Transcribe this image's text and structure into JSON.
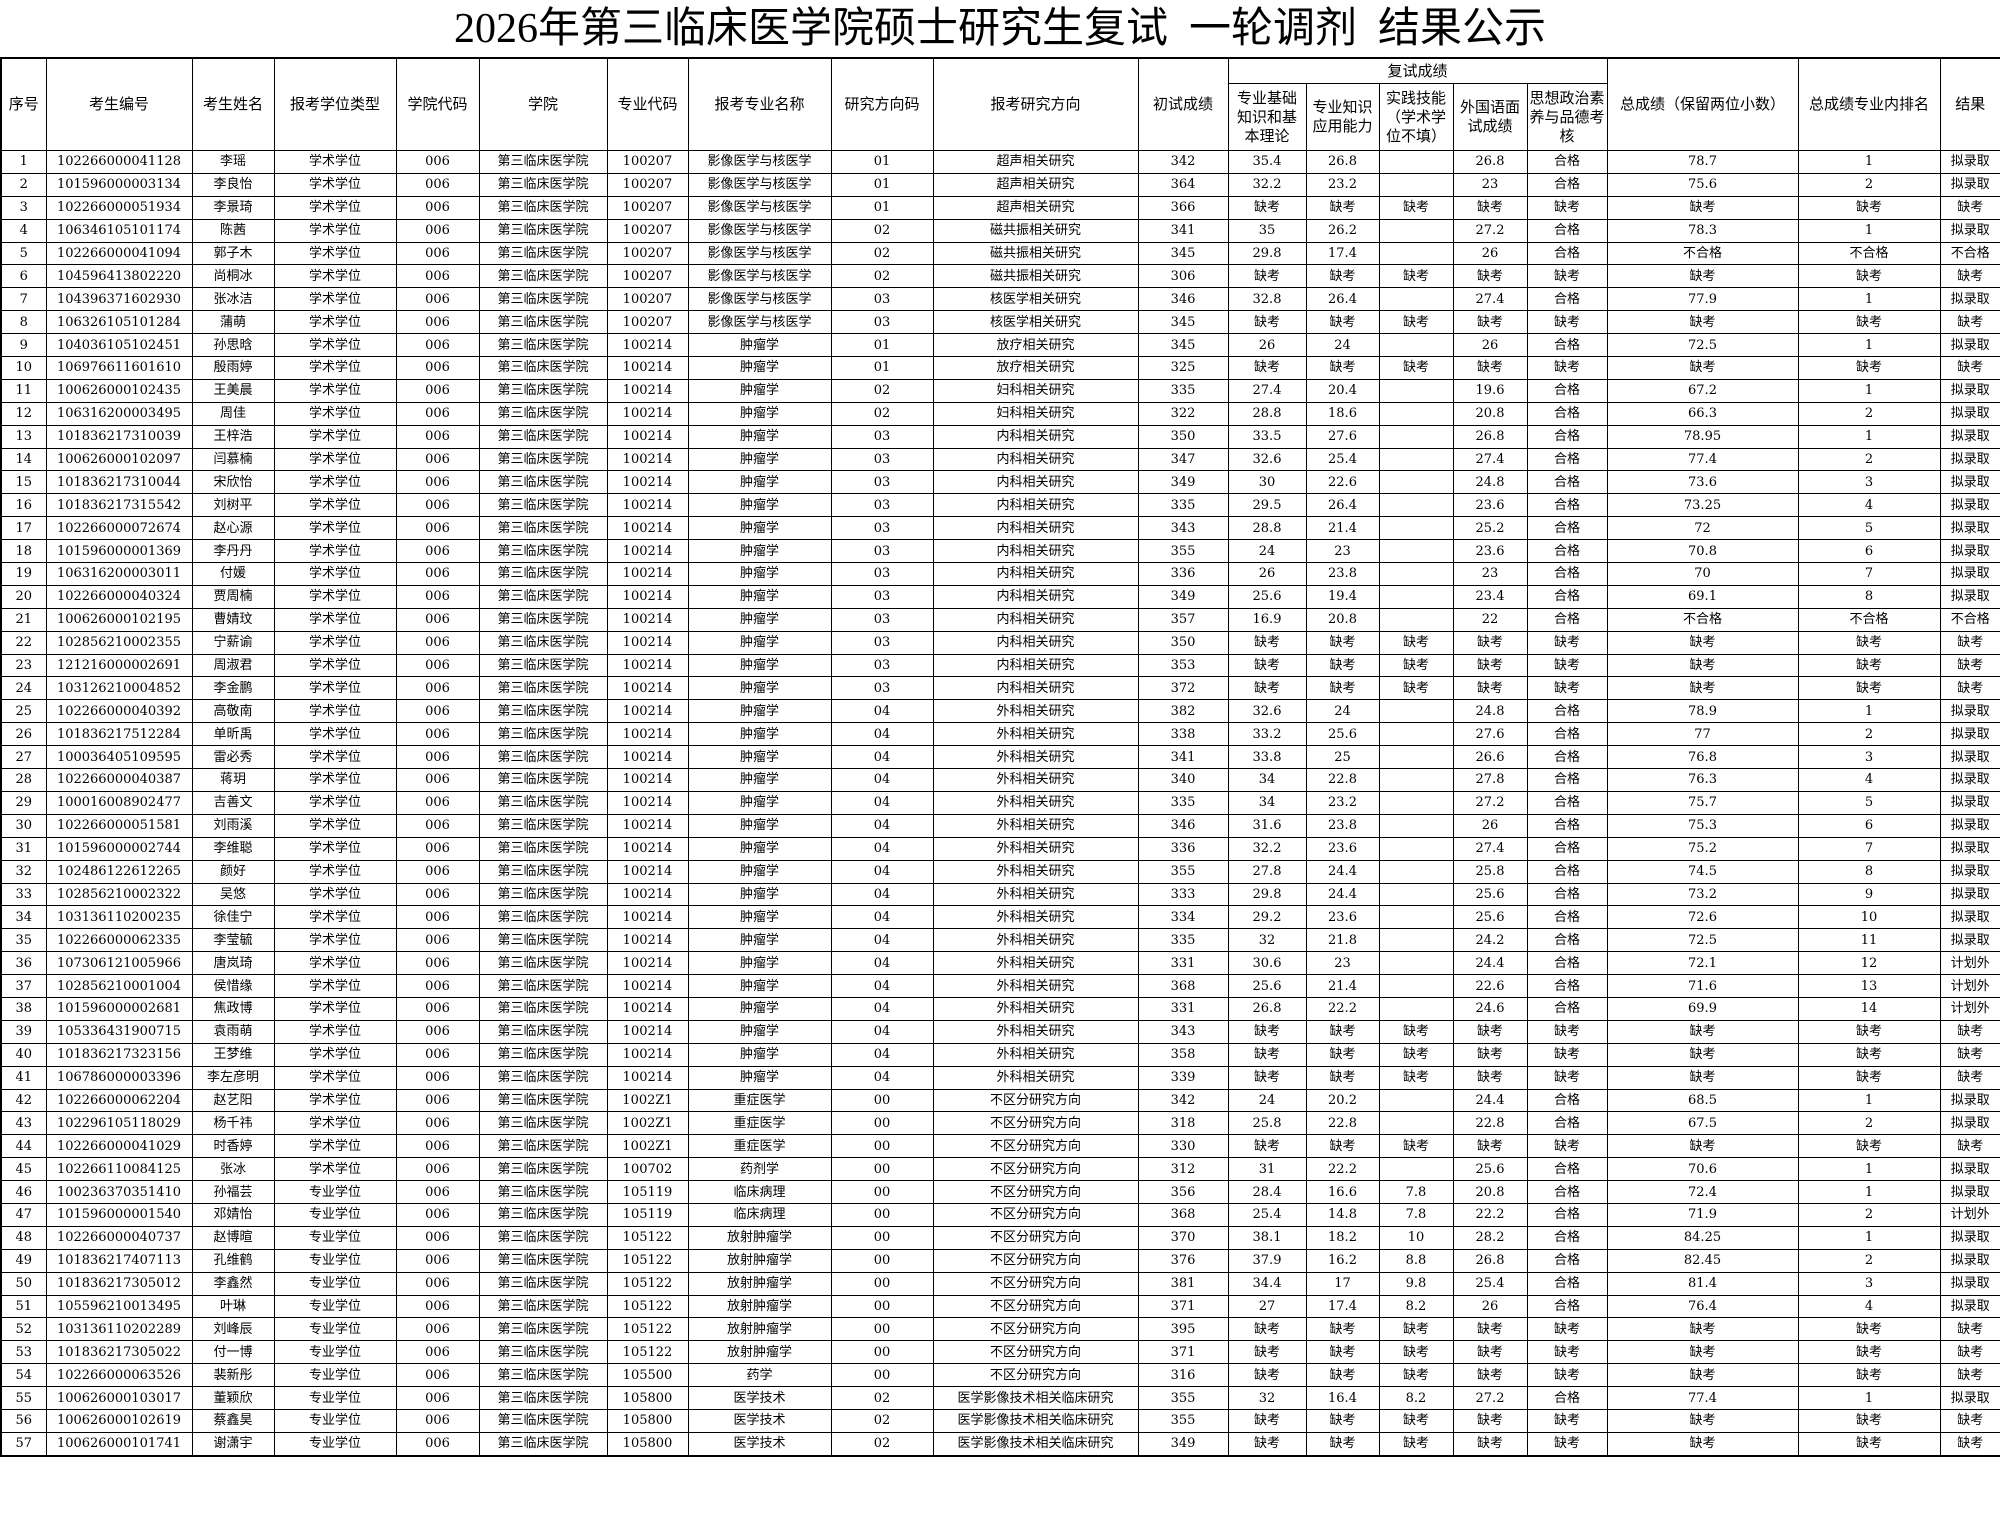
{
  "title": "2026年第三临床医学院硕士研究生复试  一轮调剂  结果公示",
  "table": {
    "headers": {
      "seq": "序号",
      "exam_id": "考生编号",
      "name": "考生姓名",
      "degree_type": "报考学位类型",
      "college_code": "学院代码",
      "college": "学院",
      "major_code": "专业代码",
      "major": "报考专业名称",
      "direction_code": "研究方向码",
      "direction": "报考研究方向",
      "prelim": "初试成绩",
      "retest_group": "复试成绩",
      "s1": "专业基础知识和基本理论",
      "s2": "专业知识应用能力",
      "s3": "实践技能（学术学位不填）",
      "s4": "外国语面试成绩",
      "s5": "思想政治素养与品德考核",
      "total": "总成绩（保留两位小数）",
      "rank": "总成绩专业内排名",
      "result": "结果"
    },
    "rows": [
      [
        "1",
        "102266000041128",
        "李瑶",
        "学术学位",
        "006",
        "第三临床医学院",
        "100207",
        "影像医学与核医学",
        "01",
        "超声相关研究",
        "342",
        "35.4",
        "26.8",
        "",
        "26.8",
        "合格",
        "78.7",
        "1",
        "拟录取"
      ],
      [
        "2",
        "101596000003134",
        "李良怡",
        "学术学位",
        "006",
        "第三临床医学院",
        "100207",
        "影像医学与核医学",
        "01",
        "超声相关研究",
        "364",
        "32.2",
        "23.2",
        "",
        "23",
        "合格",
        "75.6",
        "2",
        "拟录取"
      ],
      [
        "3",
        "102266000051934",
        "李景琦",
        "学术学位",
        "006",
        "第三临床医学院",
        "100207",
        "影像医学与核医学",
        "01",
        "超声相关研究",
        "366",
        "缺考",
        "缺考",
        "缺考",
        "缺考",
        "缺考",
        "缺考",
        "缺考",
        "缺考"
      ],
      [
        "4",
        "106346105101174",
        "陈茜",
        "学术学位",
        "006",
        "第三临床医学院",
        "100207",
        "影像医学与核医学",
        "02",
        "磁共振相关研究",
        "341",
        "35",
        "26.2",
        "",
        "27.2",
        "合格",
        "78.3",
        "1",
        "拟录取"
      ],
      [
        "5",
        "102266000041094",
        "郭子木",
        "学术学位",
        "006",
        "第三临床医学院",
        "100207",
        "影像医学与核医学",
        "02",
        "磁共振相关研究",
        "345",
        "29.8",
        "17.4",
        "",
        "26",
        "合格",
        "不合格",
        "不合格",
        "不合格"
      ],
      [
        "6",
        "104596413802220",
        "尚桐冰",
        "学术学位",
        "006",
        "第三临床医学院",
        "100207",
        "影像医学与核医学",
        "02",
        "磁共振相关研究",
        "306",
        "缺考",
        "缺考",
        "缺考",
        "缺考",
        "缺考",
        "缺考",
        "缺考",
        "缺考"
      ],
      [
        "7",
        "104396371602930",
        "张冰洁",
        "学术学位",
        "006",
        "第三临床医学院",
        "100207",
        "影像医学与核医学",
        "03",
        "核医学相关研究",
        "346",
        "32.8",
        "26.4",
        "",
        "27.4",
        "合格",
        "77.9",
        "1",
        "拟录取"
      ],
      [
        "8",
        "106326105101284",
        "蒲萌",
        "学术学位",
        "006",
        "第三临床医学院",
        "100207",
        "影像医学与核医学",
        "03",
        "核医学相关研究",
        "345",
        "缺考",
        "缺考",
        "缺考",
        "缺考",
        "缺考",
        "缺考",
        "缺考",
        "缺考"
      ],
      [
        "9",
        "104036105102451",
        "孙思晗",
        "学术学位",
        "006",
        "第三临床医学院",
        "100214",
        "肿瘤学",
        "01",
        "放疗相关研究",
        "345",
        "26",
        "24",
        "",
        "26",
        "合格",
        "72.5",
        "1",
        "拟录取"
      ],
      [
        "10",
        "106976611601610",
        "殷雨婷",
        "学术学位",
        "006",
        "第三临床医学院",
        "100214",
        "肿瘤学",
        "01",
        "放疗相关研究",
        "325",
        "缺考",
        "缺考",
        "缺考",
        "缺考",
        "缺考",
        "缺考",
        "缺考",
        "缺考"
      ],
      [
        "11",
        "100626000102435",
        "王美晨",
        "学术学位",
        "006",
        "第三临床医学院",
        "100214",
        "肿瘤学",
        "02",
        "妇科相关研究",
        "335",
        "27.4",
        "20.4",
        "",
        "19.6",
        "合格",
        "67.2",
        "1",
        "拟录取"
      ],
      [
        "12",
        "106316200003495",
        "周佳",
        "学术学位",
        "006",
        "第三临床医学院",
        "100214",
        "肿瘤学",
        "02",
        "妇科相关研究",
        "322",
        "28.8",
        "18.6",
        "",
        "20.8",
        "合格",
        "66.3",
        "2",
        "拟录取"
      ],
      [
        "13",
        "101836217310039",
        "王梓浩",
        "学术学位",
        "006",
        "第三临床医学院",
        "100214",
        "肿瘤学",
        "03",
        "内科相关研究",
        "350",
        "33.5",
        "27.6",
        "",
        "26.8",
        "合格",
        "78.95",
        "1",
        "拟录取"
      ],
      [
        "14",
        "100626000102097",
        "闫慕楠",
        "学术学位",
        "006",
        "第三临床医学院",
        "100214",
        "肿瘤学",
        "03",
        "内科相关研究",
        "347",
        "32.6",
        "25.4",
        "",
        "27.4",
        "合格",
        "77.4",
        "2",
        "拟录取"
      ],
      [
        "15",
        "101836217310044",
        "宋欣怡",
        "学术学位",
        "006",
        "第三临床医学院",
        "100214",
        "肿瘤学",
        "03",
        "内科相关研究",
        "349",
        "30",
        "22.6",
        "",
        "24.8",
        "合格",
        "73.6",
        "3",
        "拟录取"
      ],
      [
        "16",
        "101836217315542",
        "刘树平",
        "学术学位",
        "006",
        "第三临床医学院",
        "100214",
        "肿瘤学",
        "03",
        "内科相关研究",
        "335",
        "29.5",
        "26.4",
        "",
        "23.6",
        "合格",
        "73.25",
        "4",
        "拟录取"
      ],
      [
        "17",
        "102266000072674",
        "赵心源",
        "学术学位",
        "006",
        "第三临床医学院",
        "100214",
        "肿瘤学",
        "03",
        "内科相关研究",
        "343",
        "28.8",
        "21.4",
        "",
        "25.2",
        "合格",
        "72",
        "5",
        "拟录取"
      ],
      [
        "18",
        "101596000001369",
        "李丹丹",
        "学术学位",
        "006",
        "第三临床医学院",
        "100214",
        "肿瘤学",
        "03",
        "内科相关研究",
        "355",
        "24",
        "23",
        "",
        "23.6",
        "合格",
        "70.8",
        "6",
        "拟录取"
      ],
      [
        "19",
        "106316200003011",
        "付媛",
        "学术学位",
        "006",
        "第三临床医学院",
        "100214",
        "肿瘤学",
        "03",
        "内科相关研究",
        "336",
        "26",
        "23.8",
        "",
        "23",
        "合格",
        "70",
        "7",
        "拟录取"
      ],
      [
        "20",
        "102266000040324",
        "贾周楠",
        "学术学位",
        "006",
        "第三临床医学院",
        "100214",
        "肿瘤学",
        "03",
        "内科相关研究",
        "349",
        "25.6",
        "19.4",
        "",
        "23.4",
        "合格",
        "69.1",
        "8",
        "拟录取"
      ],
      [
        "21",
        "100626000102195",
        "曹婧玟",
        "学术学位",
        "006",
        "第三临床医学院",
        "100214",
        "肿瘤学",
        "03",
        "内科相关研究",
        "357",
        "16.9",
        "20.8",
        "",
        "22",
        "合格",
        "不合格",
        "不合格",
        "不合格"
      ],
      [
        "22",
        "102856210002355",
        "宁薪谕",
        "学术学位",
        "006",
        "第三临床医学院",
        "100214",
        "肿瘤学",
        "03",
        "内科相关研究",
        "350",
        "缺考",
        "缺考",
        "缺考",
        "缺考",
        "缺考",
        "缺考",
        "缺考",
        "缺考"
      ],
      [
        "23",
        "121216000002691",
        "周淑君",
        "学术学位",
        "006",
        "第三临床医学院",
        "100214",
        "肿瘤学",
        "03",
        "内科相关研究",
        "353",
        "缺考",
        "缺考",
        "缺考",
        "缺考",
        "缺考",
        "缺考",
        "缺考",
        "缺考"
      ],
      [
        "24",
        "103126210004852",
        "李金鹏",
        "学术学位",
        "006",
        "第三临床医学院",
        "100214",
        "肿瘤学",
        "03",
        "内科相关研究",
        "372",
        "缺考",
        "缺考",
        "缺考",
        "缺考",
        "缺考",
        "缺考",
        "缺考",
        "缺考"
      ],
      [
        "25",
        "102266000040392",
        "高敬南",
        "学术学位",
        "006",
        "第三临床医学院",
        "100214",
        "肿瘤学",
        "04",
        "外科相关研究",
        "382",
        "32.6",
        "24",
        "",
        "24.8",
        "合格",
        "78.9",
        "1",
        "拟录取"
      ],
      [
        "26",
        "101836217512284",
        "单昕禹",
        "学术学位",
        "006",
        "第三临床医学院",
        "100214",
        "肿瘤学",
        "04",
        "外科相关研究",
        "338",
        "33.2",
        "25.6",
        "",
        "27.6",
        "合格",
        "77",
        "2",
        "拟录取"
      ],
      [
        "27",
        "100036405109595",
        "雷必秀",
        "学术学位",
        "006",
        "第三临床医学院",
        "100214",
        "肿瘤学",
        "04",
        "外科相关研究",
        "341",
        "33.8",
        "25",
        "",
        "26.6",
        "合格",
        "76.8",
        "3",
        "拟录取"
      ],
      [
        "28",
        "102266000040387",
        "蒋玥",
        "学术学位",
        "006",
        "第三临床医学院",
        "100214",
        "肿瘤学",
        "04",
        "外科相关研究",
        "340",
        "34",
        "22.8",
        "",
        "27.8",
        "合格",
        "76.3",
        "4",
        "拟录取"
      ],
      [
        "29",
        "100016008902477",
        "吉善文",
        "学术学位",
        "006",
        "第三临床医学院",
        "100214",
        "肿瘤学",
        "04",
        "外科相关研究",
        "335",
        "34",
        "23.2",
        "",
        "27.2",
        "合格",
        "75.7",
        "5",
        "拟录取"
      ],
      [
        "30",
        "102266000051581",
        "刘雨溪",
        "学术学位",
        "006",
        "第三临床医学院",
        "100214",
        "肿瘤学",
        "04",
        "外科相关研究",
        "346",
        "31.6",
        "23.8",
        "",
        "26",
        "合格",
        "75.3",
        "6",
        "拟录取"
      ],
      [
        "31",
        "101596000002744",
        "李维聪",
        "学术学位",
        "006",
        "第三临床医学院",
        "100214",
        "肿瘤学",
        "04",
        "外科相关研究",
        "336",
        "32.2",
        "23.6",
        "",
        "27.4",
        "合格",
        "75.2",
        "7",
        "拟录取"
      ],
      [
        "32",
        "102486122612265",
        "颜好",
        "学术学位",
        "006",
        "第三临床医学院",
        "100214",
        "肿瘤学",
        "04",
        "外科相关研究",
        "355",
        "27.8",
        "24.4",
        "",
        "25.8",
        "合格",
        "74.5",
        "8",
        "拟录取"
      ],
      [
        "33",
        "102856210002322",
        "吴悠",
        "学术学位",
        "006",
        "第三临床医学院",
        "100214",
        "肿瘤学",
        "04",
        "外科相关研究",
        "333",
        "29.8",
        "24.4",
        "",
        "25.6",
        "合格",
        "73.2",
        "9",
        "拟录取"
      ],
      [
        "34",
        "103136110200235",
        "徐佳宁",
        "学术学位",
        "006",
        "第三临床医学院",
        "100214",
        "肿瘤学",
        "04",
        "外科相关研究",
        "334",
        "29.2",
        "23.6",
        "",
        "25.6",
        "合格",
        "72.6",
        "10",
        "拟录取"
      ],
      [
        "35",
        "102266000062335",
        "李莹毓",
        "学术学位",
        "006",
        "第三临床医学院",
        "100214",
        "肿瘤学",
        "04",
        "外科相关研究",
        "335",
        "32",
        "21.8",
        "",
        "24.2",
        "合格",
        "72.5",
        "11",
        "拟录取"
      ],
      [
        "36",
        "107306121005966",
        "唐岚琦",
        "学术学位",
        "006",
        "第三临床医学院",
        "100214",
        "肿瘤学",
        "04",
        "外科相关研究",
        "331",
        "30.6",
        "23",
        "",
        "24.4",
        "合格",
        "72.1",
        "12",
        "计划外"
      ],
      [
        "37",
        "102856210001004",
        "侯惜缘",
        "学术学位",
        "006",
        "第三临床医学院",
        "100214",
        "肿瘤学",
        "04",
        "外科相关研究",
        "368",
        "25.6",
        "21.4",
        "",
        "22.6",
        "合格",
        "71.6",
        "13",
        "计划外"
      ],
      [
        "38",
        "101596000002681",
        "焦政博",
        "学术学位",
        "006",
        "第三临床医学院",
        "100214",
        "肿瘤学",
        "04",
        "外科相关研究",
        "331",
        "26.8",
        "22.2",
        "",
        "24.6",
        "合格",
        "69.9",
        "14",
        "计划外"
      ],
      [
        "39",
        "105336431900715",
        "袁雨萌",
        "学术学位",
        "006",
        "第三临床医学院",
        "100214",
        "肿瘤学",
        "04",
        "外科相关研究",
        "343",
        "缺考",
        "缺考",
        "缺考",
        "缺考",
        "缺考",
        "缺考",
        "缺考",
        "缺考"
      ],
      [
        "40",
        "101836217323156",
        "王梦维",
        "学术学位",
        "006",
        "第三临床医学院",
        "100214",
        "肿瘤学",
        "04",
        "外科相关研究",
        "358",
        "缺考",
        "缺考",
        "缺考",
        "缺考",
        "缺考",
        "缺考",
        "缺考",
        "缺考"
      ],
      [
        "41",
        "106786000003396",
        "李左彦明",
        "学术学位",
        "006",
        "第三临床医学院",
        "100214",
        "肿瘤学",
        "04",
        "外科相关研究",
        "339",
        "缺考",
        "缺考",
        "缺考",
        "缺考",
        "缺考",
        "缺考",
        "缺考",
        "缺考"
      ],
      [
        "42",
        "102266000062204",
        "赵艺阳",
        "学术学位",
        "006",
        "第三临床医学院",
        "1002Z1",
        "重症医学",
        "00",
        "不区分研究方向",
        "342",
        "24",
        "20.2",
        "",
        "24.4",
        "合格",
        "68.5",
        "1",
        "拟录取"
      ],
      [
        "43",
        "102296105118029",
        "杨千祎",
        "学术学位",
        "006",
        "第三临床医学院",
        "1002Z1",
        "重症医学",
        "00",
        "不区分研究方向",
        "318",
        "25.8",
        "22.8",
        "",
        "22.8",
        "合格",
        "67.5",
        "2",
        "拟录取"
      ],
      [
        "44",
        "102266000041029",
        "时香婷",
        "学术学位",
        "006",
        "第三临床医学院",
        "1002Z1",
        "重症医学",
        "00",
        "不区分研究方向",
        "330",
        "缺考",
        "缺考",
        "缺考",
        "缺考",
        "缺考",
        "缺考",
        "缺考",
        "缺考"
      ],
      [
        "45",
        "102266110084125",
        "张冰",
        "学术学位",
        "006",
        "第三临床医学院",
        "100702",
        "药剂学",
        "00",
        "不区分研究方向",
        "312",
        "31",
        "22.2",
        "",
        "25.6",
        "合格",
        "70.6",
        "1",
        "拟录取"
      ],
      [
        "46",
        "100236370351410",
        "孙福芸",
        "专业学位",
        "006",
        "第三临床医学院",
        "105119",
        "临床病理",
        "00",
        "不区分研究方向",
        "356",
        "28.4",
        "16.6",
        "7.8",
        "20.8",
        "合格",
        "72.4",
        "1",
        "拟录取"
      ],
      [
        "47",
        "101596000001540",
        "邓婧怡",
        "专业学位",
        "006",
        "第三临床医学院",
        "105119",
        "临床病理",
        "00",
        "不区分研究方向",
        "368",
        "25.4",
        "14.8",
        "7.8",
        "22.2",
        "合格",
        "71.9",
        "2",
        "计划外"
      ],
      [
        "48",
        "102266000040737",
        "赵博暄",
        "专业学位",
        "006",
        "第三临床医学院",
        "105122",
        "放射肿瘤学",
        "00",
        "不区分研究方向",
        "370",
        "38.1",
        "18.2",
        "10",
        "28.2",
        "合格",
        "84.25",
        "1",
        "拟录取"
      ],
      [
        "49",
        "101836217407113",
        "孔维鹤",
        "专业学位",
        "006",
        "第三临床医学院",
        "105122",
        "放射肿瘤学",
        "00",
        "不区分研究方向",
        "376",
        "37.9",
        "16.2",
        "8.8",
        "26.8",
        "合格",
        "82.45",
        "2",
        "拟录取"
      ],
      [
        "50",
        "101836217305012",
        "李鑫然",
        "专业学位",
        "006",
        "第三临床医学院",
        "105122",
        "放射肿瘤学",
        "00",
        "不区分研究方向",
        "381",
        "34.4",
        "17",
        "9.8",
        "25.4",
        "合格",
        "81.4",
        "3",
        "拟录取"
      ],
      [
        "51",
        "105596210013495",
        "叶琳",
        "专业学位",
        "006",
        "第三临床医学院",
        "105122",
        "放射肿瘤学",
        "00",
        "不区分研究方向",
        "371",
        "27",
        "17.4",
        "8.2",
        "26",
        "合格",
        "76.4",
        "4",
        "拟录取"
      ],
      [
        "52",
        "103136110202289",
        "刘峰辰",
        "专业学位",
        "006",
        "第三临床医学院",
        "105122",
        "放射肿瘤学",
        "00",
        "不区分研究方向",
        "395",
        "缺考",
        "缺考",
        "缺考",
        "缺考",
        "缺考",
        "缺考",
        "缺考",
        "缺考"
      ],
      [
        "53",
        "101836217305022",
        "付一博",
        "专业学位",
        "006",
        "第三临床医学院",
        "105122",
        "放射肿瘤学",
        "00",
        "不区分研究方向",
        "371",
        "缺考",
        "缺考",
        "缺考",
        "缺考",
        "缺考",
        "缺考",
        "缺考",
        "缺考"
      ],
      [
        "54",
        "102266000063526",
        "裴新彤",
        "专业学位",
        "006",
        "第三临床医学院",
        "105500",
        "药学",
        "00",
        "不区分研究方向",
        "316",
        "缺考",
        "缺考",
        "缺考",
        "缺考",
        "缺考",
        "缺考",
        "缺考",
        "缺考"
      ],
      [
        "55",
        "100626000103017",
        "董颖欣",
        "专业学位",
        "006",
        "第三临床医学院",
        "105800",
        "医学技术",
        "02",
        "医学影像技术相关临床研究",
        "355",
        "32",
        "16.4",
        "8.2",
        "27.2",
        "合格",
        "77.4",
        "1",
        "拟录取"
      ],
      [
        "56",
        "100626000102619",
        "蔡鑫昊",
        "专业学位",
        "006",
        "第三临床医学院",
        "105800",
        "医学技术",
        "02",
        "医学影像技术相关临床研究",
        "355",
        "缺考",
        "缺考",
        "缺考",
        "缺考",
        "缺考",
        "缺考",
        "缺考",
        "缺考"
      ],
      [
        "57",
        "100626000101741",
        "谢潇宇",
        "专业学位",
        "006",
        "第三临床医学院",
        "105800",
        "医学技术",
        "02",
        "医学影像技术相关临床研究",
        "349",
        "缺考",
        "缺考",
        "缺考",
        "缺考",
        "缺考",
        "缺考",
        "缺考",
        "缺考"
      ]
    ]
  }
}
